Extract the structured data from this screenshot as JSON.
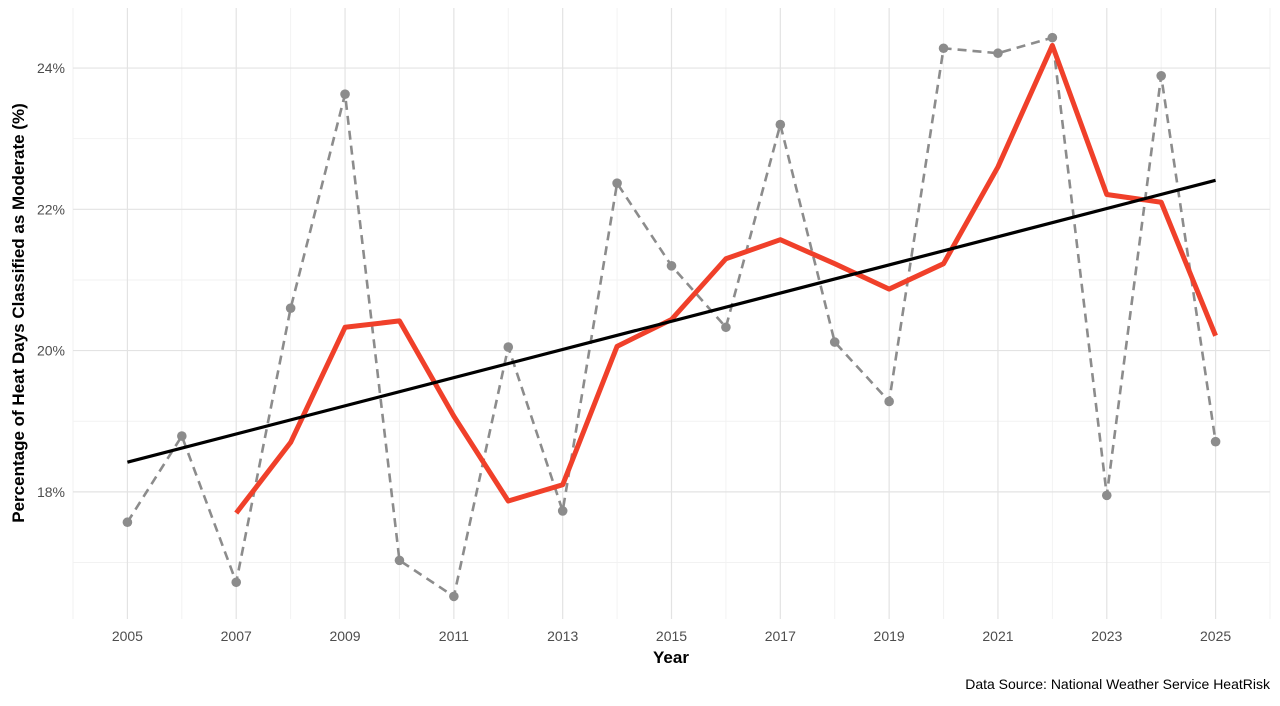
{
  "chart_data": {
    "type": "line",
    "title": "",
    "xlabel": "Year",
    "ylabel": "Percentage of Heat Days Classified as Moderate (%)",
    "caption": "Data Source: National Weather Service HeatRisk",
    "xlim": [
      2004.0,
      2026.0
    ],
    "ylim": [
      16.2,
      24.85
    ],
    "x_ticks": [
      2005,
      2007,
      2009,
      2011,
      2013,
      2015,
      2017,
      2019,
      2021,
      2023,
      2025
    ],
    "x_tick_labels": [
      "2005",
      "2007",
      "2009",
      "2011",
      "2013",
      "2015",
      "2017",
      "2019",
      "2021",
      "2023",
      "2025"
    ],
    "y_ticks": [
      18,
      20,
      22,
      24
    ],
    "y_tick_labels": [
      "18%",
      "20%",
      "22%",
      "24%"
    ],
    "grid": true,
    "legend": "none",
    "series": [
      {
        "role": "annual",
        "style": "dashed-points",
        "color": "#8c8c8c",
        "x": [
          2005,
          2006,
          2007,
          2008,
          2009,
          2010,
          2011,
          2012,
          2013,
          2014,
          2015,
          2016,
          2017,
          2018,
          2019,
          2020,
          2021,
          2022,
          2023,
          2024,
          2025
        ],
        "values": [
          17.57,
          18.79,
          16.72,
          20.6,
          23.63,
          17.03,
          16.52,
          20.05,
          17.73,
          22.37,
          21.2,
          20.33,
          23.2,
          20.12,
          19.28,
          24.28,
          24.21,
          24.43,
          17.95,
          23.89,
          18.71
        ]
      },
      {
        "role": "moving-average",
        "style": "solid",
        "color": "#f0402a",
        "x": [
          2007,
          2008,
          2009,
          2010,
          2011,
          2012,
          2013,
          2014,
          2015,
          2016,
          2017,
          2018,
          2019,
          2020,
          2021,
          2022,
          2023,
          2024,
          2025
        ],
        "values": [
          17.7,
          18.7,
          20.33,
          20.42,
          19.07,
          17.87,
          18.1,
          20.06,
          20.44,
          21.3,
          21.57,
          21.23,
          20.87,
          21.23,
          22.6,
          24.32,
          22.21,
          22.1,
          20.21
        ]
      },
      {
        "role": "trend",
        "style": "solid",
        "color": "#000000",
        "x": [
          2005,
          2025
        ],
        "values": [
          18.42,
          22.41
        ]
      }
    ]
  }
}
